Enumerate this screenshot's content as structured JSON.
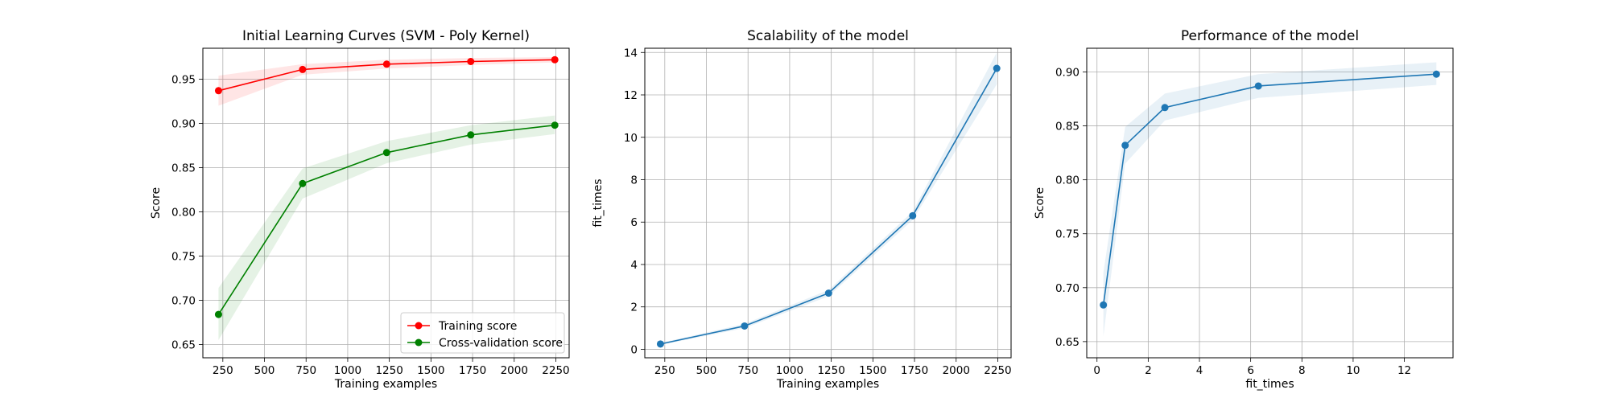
{
  "chart_data": [
    {
      "type": "line",
      "title": "Initial Learning Curves (SVM - Poly Kernel)",
      "xlabel": "Training examples",
      "ylabel": "Score",
      "xlim": [
        130,
        2330
      ],
      "ylim": [
        0.635,
        0.985
      ],
      "xticks": [
        250,
        500,
        750,
        1000,
        1250,
        1500,
        1750,
        2000,
        2250
      ],
      "yticks": [
        0.65,
        0.7,
        0.75,
        0.8,
        0.85,
        0.9,
        0.95
      ],
      "ytick_decimals": 2,
      "grid": true,
      "legend": "lower-right",
      "series": [
        {
          "name": "Training score",
          "color": "#ff0000",
          "x": [
            224,
            729,
            1234,
            1739,
            2244
          ],
          "y": [
            0.937,
            0.961,
            0.967,
            0.97,
            0.972
          ],
          "band_low": [
            0.92,
            0.955,
            0.962,
            0.966,
            0.969
          ],
          "band_high": [
            0.954,
            0.967,
            0.972,
            0.974,
            0.975
          ]
        },
        {
          "name": "Cross-validation score",
          "color": "#008000",
          "x": [
            224,
            729,
            1234,
            1739,
            2244
          ],
          "y": [
            0.684,
            0.832,
            0.867,
            0.887,
            0.898
          ],
          "band_low": [
            0.655,
            0.815,
            0.855,
            0.876,
            0.888
          ],
          "band_high": [
            0.714,
            0.849,
            0.88,
            0.898,
            0.909
          ]
        }
      ]
    },
    {
      "type": "line",
      "title": "Scalability of the model",
      "xlabel": "Training examples",
      "ylabel": "fit_times",
      "xlim": [
        130,
        2330
      ],
      "ylim": [
        -0.4,
        14.2
      ],
      "xticks": [
        250,
        500,
        750,
        1000,
        1250,
        1500,
        1750,
        2000,
        2250
      ],
      "yticks": [
        0,
        2,
        4,
        6,
        8,
        10,
        12,
        14
      ],
      "ytick_decimals": 0,
      "grid": true,
      "series": [
        {
          "color": "#1f77b4",
          "x": [
            224,
            729,
            1234,
            1739,
            2244
          ],
          "y": [
            0.25,
            1.1,
            2.65,
            6.3,
            13.25
          ],
          "band_low": [
            0.2,
            1.0,
            2.5,
            6.1,
            12.5
          ],
          "band_high": [
            0.3,
            1.2,
            2.8,
            6.5,
            14.0
          ]
        }
      ]
    },
    {
      "type": "line",
      "title": "Performance of the model",
      "xlabel": "fit_times",
      "ylabel": "Score",
      "xlim": [
        -0.4,
        13.9
      ],
      "ylim": [
        0.635,
        0.922
      ],
      "xticks": [
        0,
        2,
        4,
        6,
        8,
        10,
        12
      ],
      "yticks": [
        0.65,
        0.7,
        0.75,
        0.8,
        0.85,
        0.9
      ],
      "ytick_decimals": 2,
      "grid": true,
      "series": [
        {
          "color": "#1f77b4",
          "x": [
            0.25,
            1.1,
            2.65,
            6.3,
            13.25
          ],
          "y": [
            0.684,
            0.832,
            0.867,
            0.887,
            0.898
          ],
          "band_low": [
            0.655,
            0.815,
            0.855,
            0.876,
            0.888
          ],
          "band_high": [
            0.714,
            0.849,
            0.88,
            0.898,
            0.909
          ]
        }
      ]
    }
  ]
}
